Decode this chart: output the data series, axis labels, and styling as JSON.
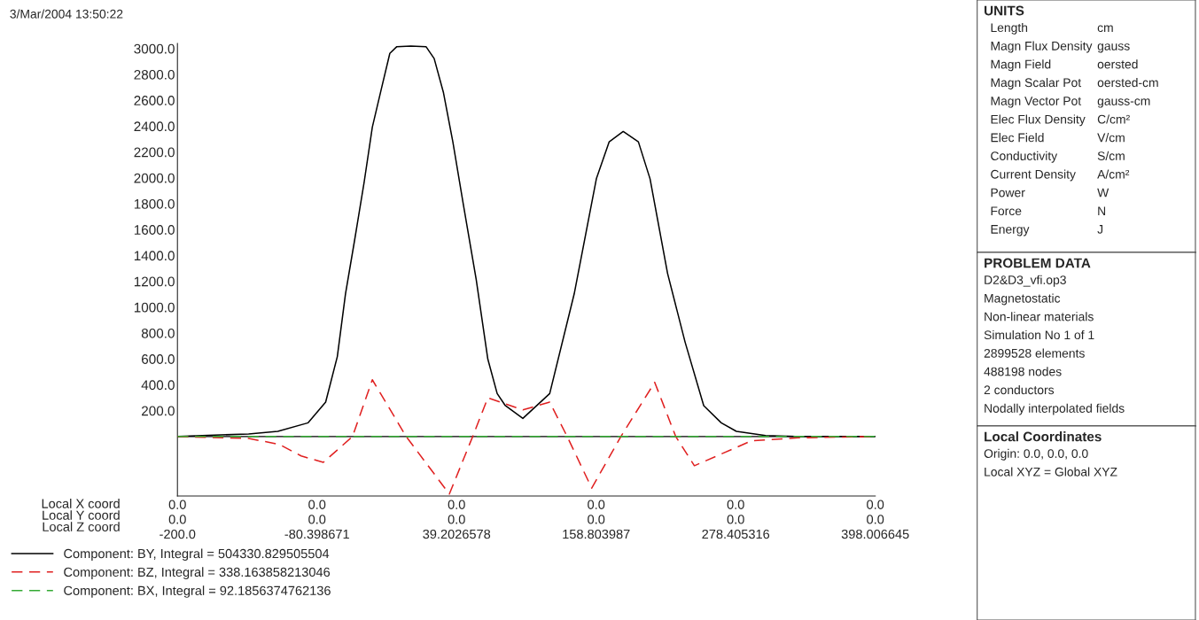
{
  "chart_data": [
    {
      "type": "line",
      "title": "3/Mar/2004 13:50:22",
      "xlabel": "Local X coord\nLocal Y coord\nLocal Z coord",
      "xlim": [
        -200,
        398.006645
      ],
      "xticks": [
        {
          "value": -200,
          "label": "-200.0"
        },
        -80.398671,
        39.2026578,
        158.803987,
        278.405316,
        398.006645
      ],
      "annotations": [
        "0.0",
        "0.0",
        "0.0",
        "0.0",
        "0.0",
        "0.0",
        "0.0",
        "0.0",
        "0.0",
        "0.0",
        "0.0",
        "0.0"
      ],
      "ref_lines": [
        {
          "axis": "y",
          "value": 0,
          "color": "#000000"
        }
      ],
      "ylim": [
        -460,
        3040
      ],
      "yticks": [
        {
          "value": 200,
          "label": "200.0"
        },
        {
          "value": 400,
          "label": "400.0"
        },
        {
          "value": 600,
          "label": "600.0"
        },
        {
          "value": 800,
          "label": "800.0"
        },
        {
          "value": 1000,
          "label": "1000.0"
        },
        {
          "value": 1200,
          "label": "1200.0"
        },
        {
          "value": 1400,
          "label": "1400.0"
        },
        {
          "value": 1600,
          "label": "1600.0"
        },
        {
          "value": 1800,
          "label": "1800.0"
        },
        {
          "value": 2000,
          "label": "2000.0"
        },
        {
          "value": 2200,
          "label": "2200.0"
        },
        {
          "value": 2400,
          "label": "2400.0"
        },
        {
          "value": 2600,
          "label": "2600.0"
        },
        {
          "value": 2800,
          "label": "2800.0"
        },
        {
          "value": 3000,
          "label": "3000.0"
        }
      ],
      "grid": false,
      "legend": "bottom",
      "series": [
        {
          "name": "Component: BY, Integral = 504330.829505504",
          "color": "#000000",
          "line_style": "solid",
          "x": [
            -200,
            -139,
            -114,
            -88,
            -73,
            -63,
            -56,
            -48,
            -40,
            -33,
            -25,
            -18,
            -12,
            0,
            13,
            20,
            28,
            36,
            45,
            56,
            66,
            74,
            81,
            96,
            119,
            140,
            159,
            170,
            182,
            195,
            205,
            220,
            235,
            251,
            266,
            279,
            304,
            330,
            398
          ],
          "values": [
            0,
            20,
            40,
            106,
            266,
            618,
            1103,
            1528,
            1967,
            2392,
            2698,
            2963,
            3015,
            3020,
            3015,
            2923,
            2658,
            2279,
            1794,
            1216,
            598,
            332,
            239,
            140,
            332,
            1103,
            1993,
            2279,
            2359,
            2279,
            1993,
            1262,
            731,
            239,
            106,
            40,
            7,
            0,
            0
          ]
        },
        {
          "name": "Component: BZ, Integral = 338.163858213046",
          "color": "#e02020",
          "line_style": "dashed",
          "x": [
            -200,
            -139,
            -113,
            -94,
            -75,
            -50,
            -33,
            -4,
            33,
            53,
            66,
            96,
            119,
            134,
            155,
            180,
            209,
            227,
            243,
            292,
            332,
            398
          ],
          "values": [
            0,
            -15,
            -60,
            -150,
            -200,
            0,
            439,
            0,
            -445,
            0,
            299,
            206,
            266,
            0,
            -399,
            0,
            419,
            0,
            -226,
            -33,
            -10,
            0
          ]
        },
        {
          "name": "Component: BX, Integral = 92.1856374762136",
          "color": "#33aa33",
          "line_style": "dashed",
          "x": [
            -200,
            0,
            200,
            398
          ],
          "values": [
            0,
            0,
            0,
            0
          ]
        }
      ]
    },
    {
      "type": "other",
      "title": "UNITS",
      "categories": [
        "Length",
        "Magn Flux Density",
        "Magn Field",
        "Magn Scalar Pot",
        "Magn Vector Pot",
        "Elec Flux Density",
        "Elec Field",
        "Conductivity",
        "Current Density",
        "Power",
        "Force",
        "Energy"
      ],
      "value_labels": [
        "cm",
        "gauss",
        "oersted",
        "oersted-cm",
        "gauss-cm",
        "C/cm²",
        "V/cm",
        "S/cm",
        "A/cm²",
        "W",
        "N",
        "J"
      ]
    },
    {
      "type": "other",
      "title": "PROBLEM DATA",
      "annotations": [
        "D2&D3_vfi.op3",
        "Magnetostatic",
        "Non-linear materials",
        "Simulation No 1 of 1",
        "2899528 elements",
        "488198 nodes",
        "2 conductors",
        "Nodally interpolated fields"
      ]
    },
    {
      "type": "other",
      "title": "Local Coordinates",
      "annotations": [
        "Origin: 0.0, 0.0, 0.0",
        "Local XYZ = Global XYZ"
      ]
    }
  ]
}
